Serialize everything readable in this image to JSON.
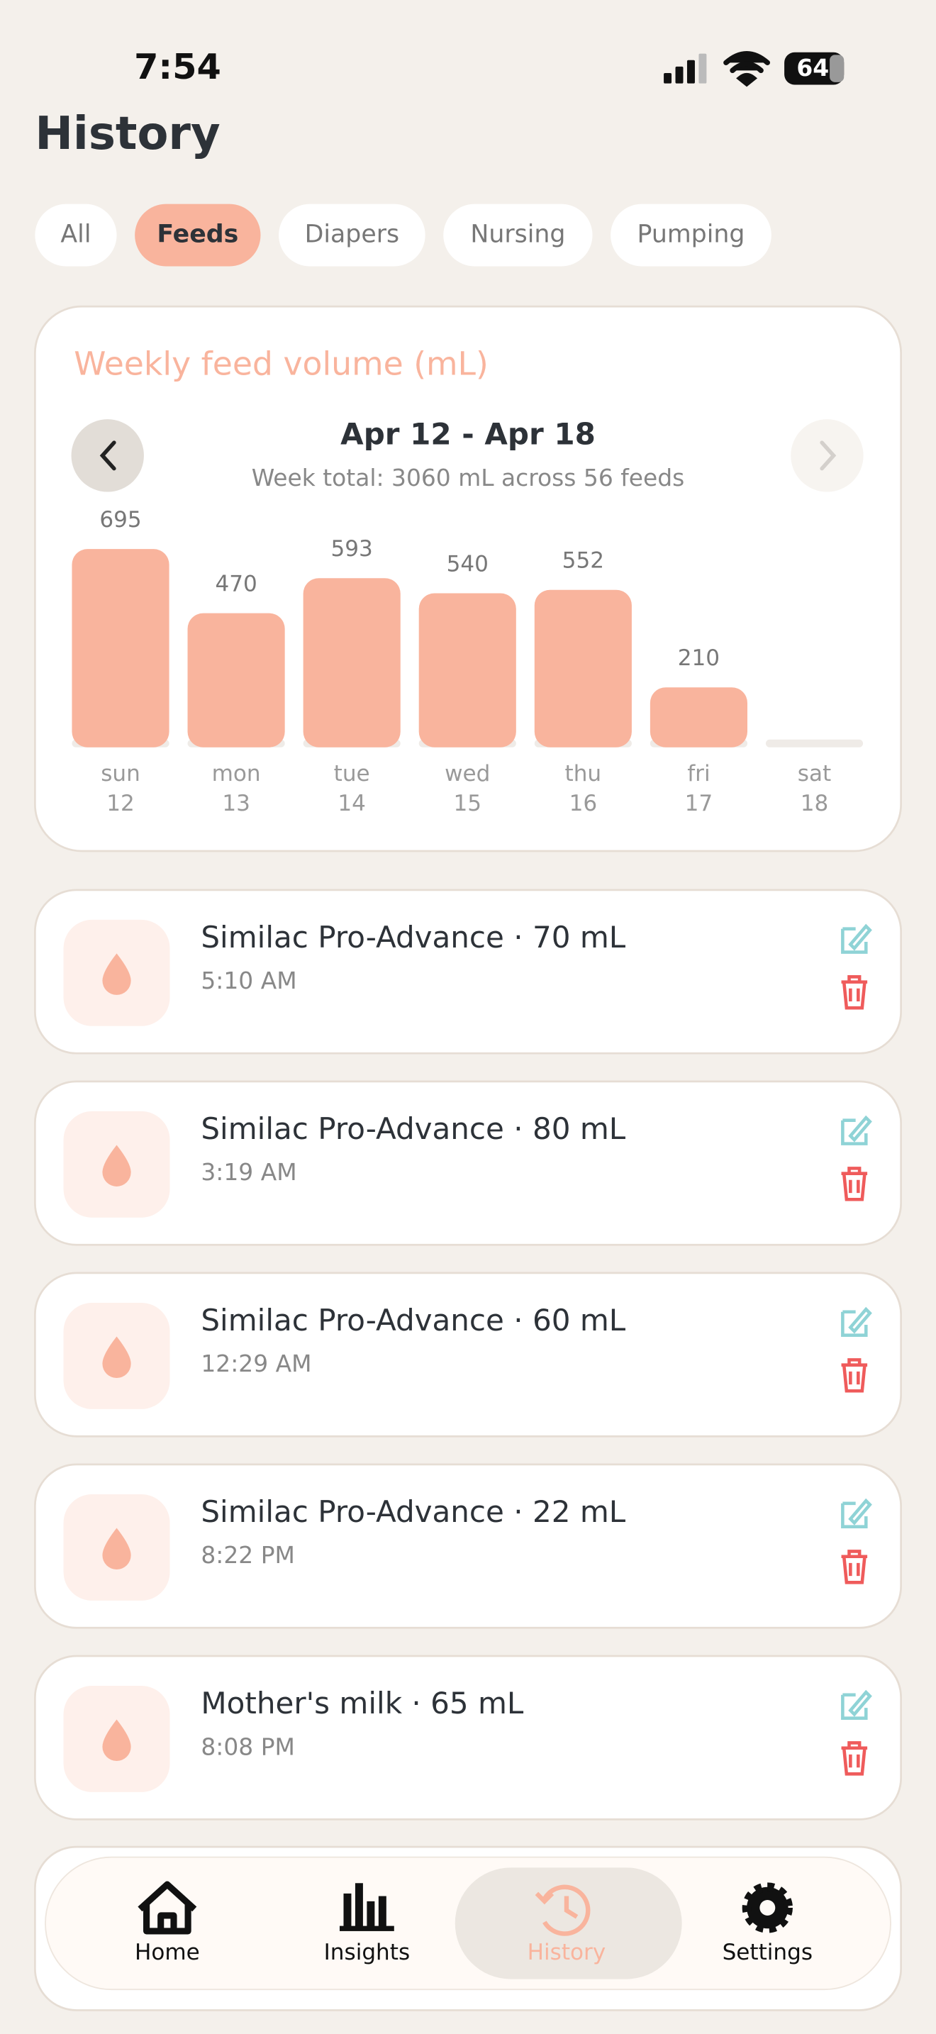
{
  "status_bar": {
    "time": "7:54",
    "battery": "64"
  },
  "header": {
    "title": "History"
  },
  "filters": [
    "All",
    "Feeds",
    "Diapers",
    "Nursing",
    "Pumping"
  ],
  "chart": {
    "title": "Weekly feed volume (mL)",
    "range": "Apr 12 - Apr 18",
    "summary": "Week total: 3060 mL across 56 feeds",
    "days": [
      "sun",
      "mon",
      "tue",
      "wed",
      "thu",
      "fri",
      "sat"
    ],
    "dates": [
      "12",
      "13",
      "14",
      "15",
      "16",
      "17",
      "18"
    ],
    "values": [
      695,
      470,
      593,
      540,
      552,
      210,
      0
    ]
  },
  "entries": [
    {
      "title": "Similac Pro-Advance · 70 mL",
      "time": "5:10 AM"
    },
    {
      "title": "Similac Pro-Advance · 80 mL",
      "time": "3:19 AM"
    },
    {
      "title": "Similac Pro-Advance · 60 mL",
      "time": "12:29 AM"
    },
    {
      "title": "Similac Pro-Advance · 22 mL",
      "time": "8:22 PM"
    },
    {
      "title": "Mother's milk · 65 mL",
      "time": "8:08 PM"
    }
  ],
  "nav": [
    "Home",
    "Insights",
    "History",
    "Settings"
  ]
}
